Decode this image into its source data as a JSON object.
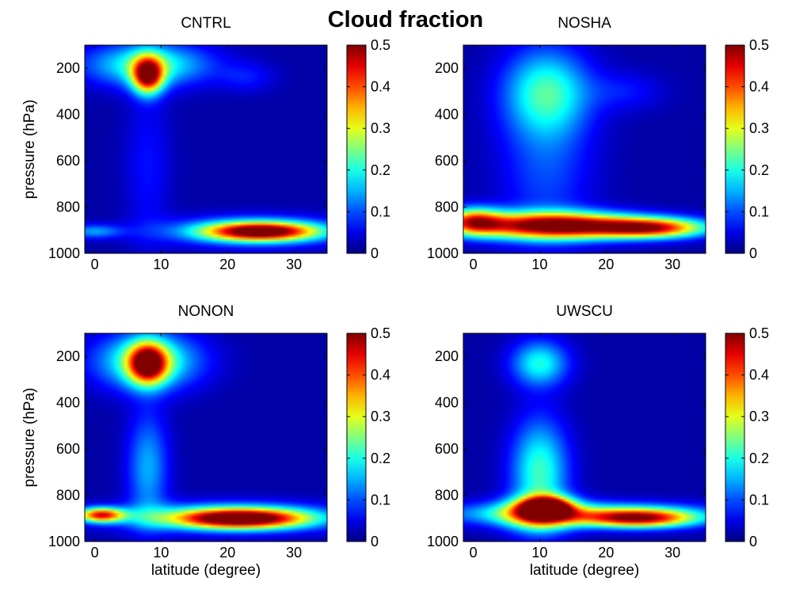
{
  "figure": {
    "title": "Cloud fraction"
  },
  "chart_data": [
    {
      "type": "heatmap",
      "title": "CNTRL",
      "xlabel": "",
      "ylabel": "pressure (hPa)",
      "xlim": [
        -1.5,
        35
      ],
      "ylim": [
        1000,
        100
      ],
      "xticks": [
        0,
        10,
        20,
        30
      ],
      "yticks": [
        200,
        400,
        600,
        800,
        1000
      ],
      "colorbar": {
        "min": 0,
        "max": 0.5,
        "ticks": [
          0,
          0.1,
          0.2,
          0.3,
          0.4,
          0.5
        ],
        "colormap": "jet"
      },
      "features": [
        {
          "lat": 8,
          "p": 230,
          "peak": 0.42,
          "s_lat": 1.6,
          "s_p": 55
        },
        {
          "lat": 8,
          "p": 185,
          "peak": 0.2,
          "s_lat": 6.5,
          "s_p": 65
        },
        {
          "lat": 8,
          "p": 620,
          "peak": 0.05,
          "s_lat": 2.5,
          "s_p": 250
        },
        {
          "lat": 0,
          "p": 905,
          "peak": 0.12,
          "s_lat": 3,
          "s_p": 22
        },
        {
          "lat": 25,
          "p": 905,
          "peak": 0.43,
          "s_lat": 6,
          "s_p": 28
        },
        {
          "lat": 24,
          "p": 905,
          "peak": 0.15,
          "s_lat": 9,
          "s_p": 45
        },
        {
          "lat": 23,
          "p": 240,
          "peak": 0.05,
          "s_lat": 3,
          "s_p": 45
        }
      ]
    },
    {
      "type": "heatmap",
      "title": "NOSHA",
      "xlabel": "",
      "ylabel": "",
      "xlim": [
        -1.5,
        35
      ],
      "ylim": [
        1000,
        100
      ],
      "xticks": [
        0,
        10,
        20,
        30
      ],
      "yticks": [
        200,
        400,
        600,
        800,
        1000
      ],
      "colorbar": {
        "min": 0,
        "max": 0.5,
        "ticks": [
          0,
          0.1,
          0.2,
          0.3,
          0.4,
          0.5
        ],
        "colormap": "jet"
      },
      "features": [
        {
          "lat": 11,
          "p": 300,
          "peak": 0.18,
          "s_lat": 4.5,
          "s_p": 130
        },
        {
          "lat": 11,
          "p": 620,
          "peak": 0.08,
          "s_lat": 5,
          "s_p": 250
        },
        {
          "lat": 12,
          "p": 880,
          "peak": 0.5,
          "s_lat": 9,
          "s_p": 40
        },
        {
          "lat": 27,
          "p": 890,
          "peak": 0.38,
          "s_lat": 6,
          "s_p": 30
        },
        {
          "lat": 0,
          "p": 860,
          "peak": 0.3,
          "s_lat": 3,
          "s_p": 40
        },
        {
          "lat": 23,
          "p": 300,
          "peak": 0.05,
          "s_lat": 4,
          "s_p": 60
        }
      ]
    },
    {
      "type": "heatmap",
      "title": "NONON",
      "xlabel": "latitude (degree)",
      "ylabel": "pressure (hPa)",
      "xlim": [
        -1.5,
        35
      ],
      "ylim": [
        1000,
        100
      ],
      "xticks": [
        0,
        10,
        20,
        30
      ],
      "yticks": [
        200,
        400,
        600,
        800,
        1000
      ],
      "colorbar": {
        "min": 0,
        "max": 0.5,
        "ticks": [
          0,
          0.1,
          0.2,
          0.3,
          0.4,
          0.5
        ],
        "colormap": "jet"
      },
      "features": [
        {
          "lat": 8,
          "p": 230,
          "peak": 0.42,
          "s_lat": 2,
          "s_p": 60
        },
        {
          "lat": 8,
          "p": 220,
          "peak": 0.22,
          "s_lat": 5.5,
          "s_p": 85
        },
        {
          "lat": 8,
          "p": 680,
          "peak": 0.13,
          "s_lat": 2.2,
          "s_p": 170
        },
        {
          "lat": 1,
          "p": 885,
          "peak": 0.4,
          "s_lat": 2.5,
          "s_p": 22
        },
        {
          "lat": 22,
          "p": 900,
          "peak": 0.47,
          "s_lat": 7,
          "s_p": 30
        },
        {
          "lat": 20,
          "p": 895,
          "peak": 0.15,
          "s_lat": 12,
          "s_p": 45
        }
      ]
    },
    {
      "type": "heatmap",
      "title": "UWSCU",
      "xlabel": "latitude (degree)",
      "ylabel": "",
      "xlim": [
        -1.5,
        35
      ],
      "ylim": [
        1000,
        100
      ],
      "xticks": [
        0,
        10,
        20,
        30
      ],
      "yticks": [
        200,
        400,
        600,
        800,
        1000
      ],
      "colorbar": {
        "min": 0,
        "max": 0.5,
        "ticks": [
          0,
          0.1,
          0.2,
          0.3,
          0.4,
          0.5
        ],
        "colormap": "jet"
      },
      "features": [
        {
          "lat": 10,
          "p": 230,
          "peak": 0.18,
          "s_lat": 3,
          "s_p": 70
        },
        {
          "lat": 10,
          "p": 700,
          "peak": 0.2,
          "s_lat": 3,
          "s_p": 160
        },
        {
          "lat": 11,
          "p": 850,
          "peak": 0.4,
          "s_lat": 2.5,
          "s_p": 30
        },
        {
          "lat": 25,
          "p": 900,
          "peak": 0.38,
          "s_lat": 6,
          "s_p": 28
        },
        {
          "lat": 15,
          "p": 880,
          "peak": 0.2,
          "s_lat": 14,
          "s_p": 35
        },
        {
          "lat": 10,
          "p": 880,
          "peak": 0.25,
          "s_lat": 4,
          "s_p": 50
        }
      ]
    }
  ]
}
